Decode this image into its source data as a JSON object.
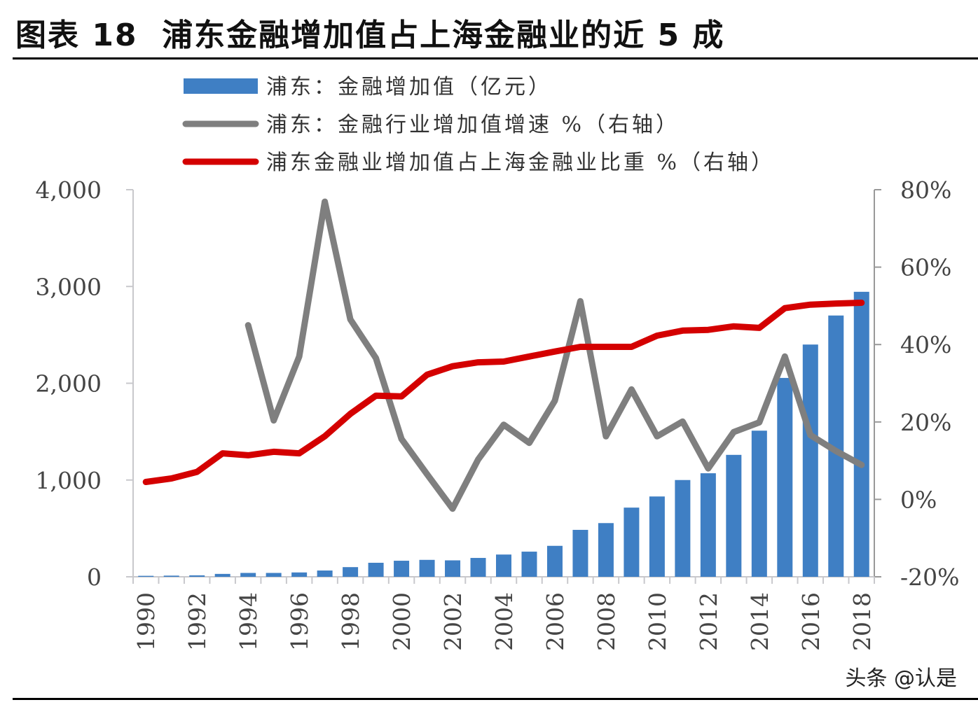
{
  "title": "图表 18  浦东金融增加值占上海金融业的近 5 成",
  "watermark": "头条 @认是",
  "chart_data": {
    "type": "bar+line",
    "categories": [
      1990,
      1991,
      1992,
      1993,
      1994,
      1995,
      1996,
      1997,
      1998,
      1999,
      2000,
      2001,
      2002,
      2003,
      2004,
      2005,
      2006,
      2007,
      2008,
      2009,
      2010,
      2011,
      2012,
      2013,
      2014,
      2015,
      2016,
      2017,
      2018
    ],
    "x_tick_labels": [
      "1990",
      "1992",
      "1994",
      "1996",
      "1998",
      "2000",
      "2002",
      "2004",
      "2006",
      "2008",
      "2010",
      "2012",
      "2014",
      "2016",
      "2018"
    ],
    "left_axis": {
      "ylim": [
        0,
        4000
      ],
      "ticks": [
        "0",
        "1,000",
        "2,000",
        "3,000",
        "4,000"
      ]
    },
    "right_axis": {
      "ylim": [
        -20,
        80
      ],
      "ticks": [
        "-20%",
        "0%",
        "20%",
        "40%",
        "60%",
        "80%"
      ]
    },
    "legend_placement": "top",
    "series": [
      {
        "name": "浦东：金融增加值（亿元）",
        "type": "bar",
        "axis": "left",
        "color": "#3f7fc4",
        "values": [
          10,
          12,
          15,
          30,
          40,
          40,
          45,
          65,
          100,
          145,
          166,
          175,
          170,
          195,
          230,
          260,
          320,
          485,
          555,
          715,
          830,
          1000,
          1070,
          1260,
          1510,
          2055,
          2400,
          2700,
          2945
        ]
      },
      {
        "name": "浦东：金融行业增加值增速 %（右轴）",
        "type": "line",
        "axis": "right",
        "color": "#7f7f7f",
        "values": [
          null,
          null,
          null,
          null,
          45,
          20.4,
          36.9,
          76.9,
          46.5,
          36.5,
          15.6,
          6.5,
          -2.4,
          10.3,
          19.3,
          14.6,
          25.5,
          51.2,
          16.3,
          28.4,
          16.3,
          20.1,
          8.0,
          17.4,
          19.9,
          36.9,
          16.6,
          12.5,
          8.9
        ]
      },
      {
        "name": "浦东金融业增加值占上海金融业比重 %（右轴）",
        "type": "line",
        "axis": "right",
        "color": "#d40000",
        "values": [
          4.5,
          5.4,
          7.1,
          11.9,
          11.4,
          12.3,
          11.9,
          16.3,
          22.1,
          26.8,
          26.6,
          32.2,
          34.4,
          35.4,
          35.6,
          36.9,
          38.2,
          39.4,
          39.4,
          39.4,
          42.3,
          43.6,
          43.8,
          44.7,
          44.3,
          49.4,
          50.3,
          50.6,
          50.8
        ]
      }
    ]
  }
}
